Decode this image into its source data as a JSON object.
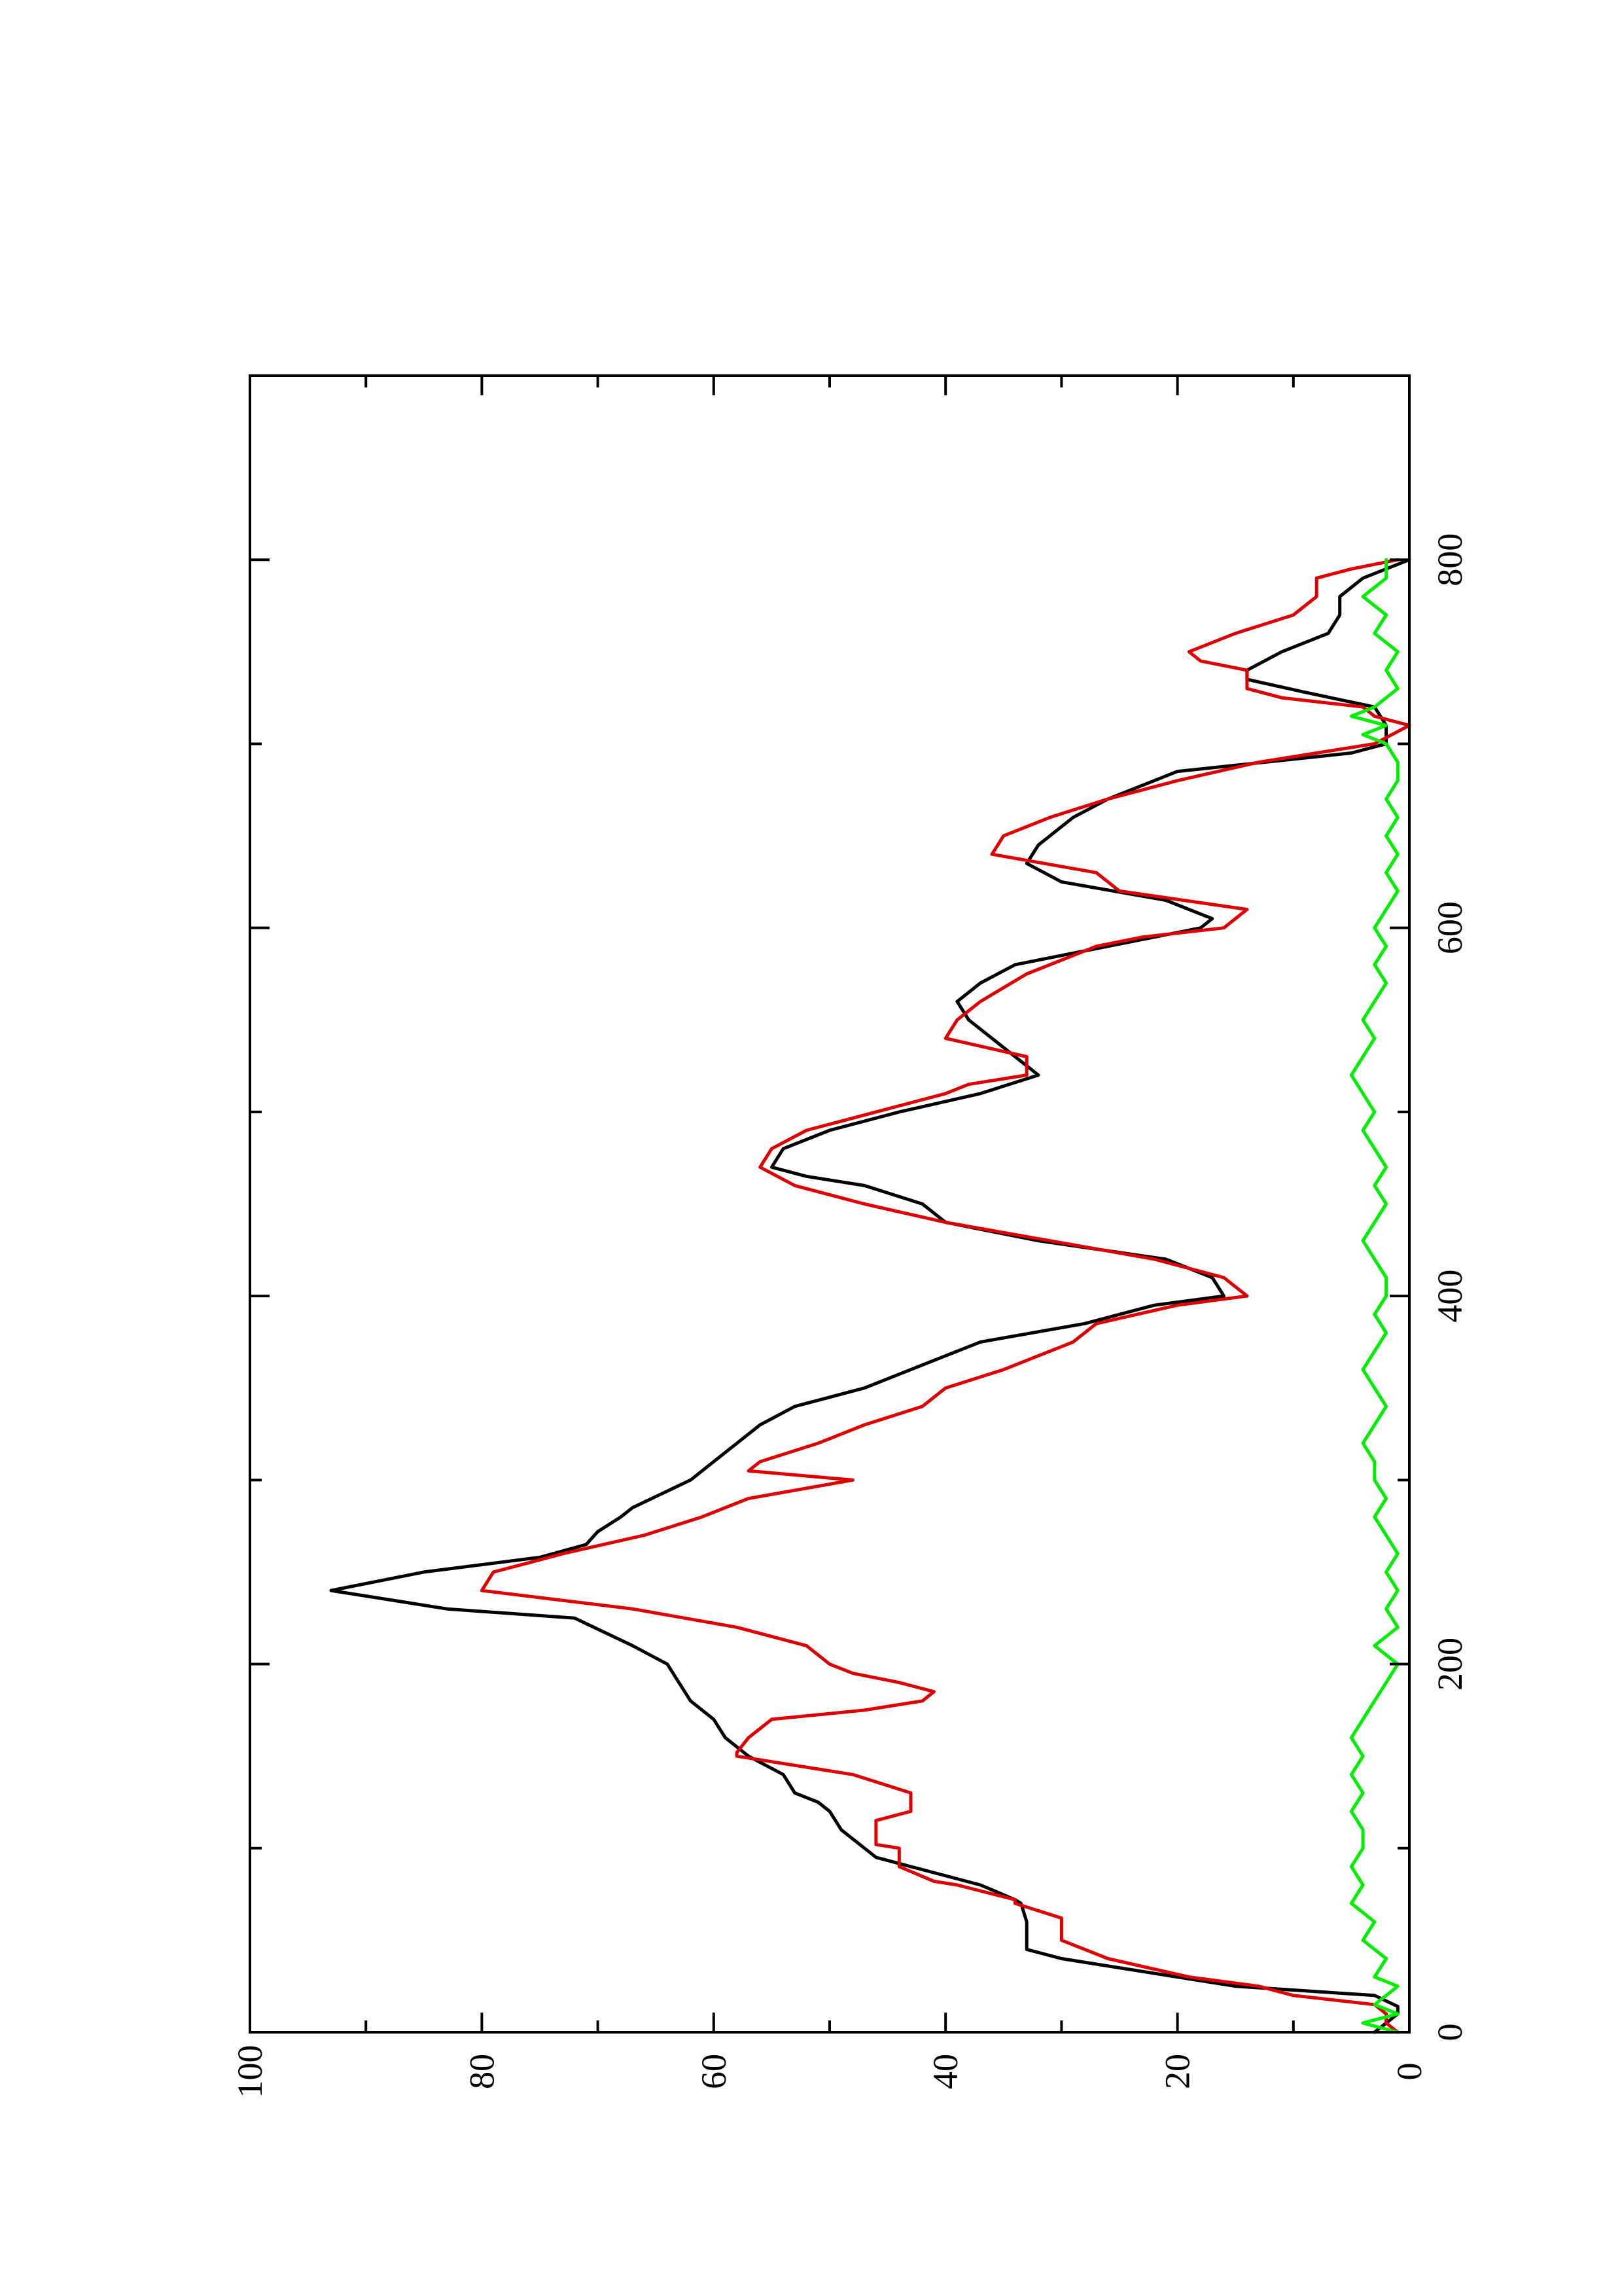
{
  "chart_data": {
    "type": "line",
    "orientation": "rotated-90-ccw",
    "xlim": [
      0,
      900
    ],
    "ylim": [
      0,
      100
    ],
    "x_ticks": [
      0,
      200,
      400,
      600,
      800
    ],
    "x_tick_labels": [
      "0",
      "200",
      "400",
      "600",
      "800"
    ],
    "y_ticks": [
      0,
      20,
      40,
      60,
      80,
      100
    ],
    "y_tick_labels": [
      "0",
      "20",
      "40",
      "60",
      "80",
      "100"
    ],
    "grid": false,
    "legend": "none",
    "series": [
      {
        "color": "#000000",
        "x": [
          0,
          10,
          14,
          20,
          25,
          40,
          45,
          55,
          60,
          70,
          72,
          80,
          90,
          95,
          105,
          110,
          120,
          125,
          130,
          140,
          150,
          160,
          170,
          180,
          190,
          200,
          210,
          225,
          230,
          240,
          250,
          258,
          265,
          272,
          280,
          285,
          300,
          310,
          330,
          340,
          345,
          350,
          360,
          375,
          385,
          395,
          400,
          410,
          420,
          430,
          440,
          450,
          460,
          465,
          470,
          480,
          490,
          500,
          510,
          520,
          530,
          540,
          550,
          560,
          570,
          580,
          590,
          600,
          605,
          615,
          625,
          635,
          645,
          660,
          670,
          685,
          695,
          700,
          710,
          720,
          728,
          735,
          740,
          750,
          760,
          770,
          780,
          790,
          800
        ],
        "y": [
          3,
          1,
          1,
          3,
          15,
          30,
          33,
          33,
          33,
          33.5,
          34,
          37,
          43,
          46,
          48,
          49,
          50,
          51,
          53,
          54,
          57,
          59,
          60,
          62,
          63,
          64,
          67,
          72,
          83,
          93,
          85,
          75,
          71,
          70,
          68,
          67,
          62,
          60,
          56,
          53,
          50,
          47,
          43,
          37,
          28,
          22,
          16,
          17,
          21,
          32,
          40,
          42,
          47,
          52,
          55,
          54,
          50,
          44,
          37,
          32,
          34,
          36,
          38,
          39,
          37,
          34,
          26,
          18,
          17,
          21,
          30,
          33,
          32,
          29,
          26,
          20,
          5,
          2,
          2,
          3,
          9,
          14,
          14,
          11,
          7,
          6,
          6,
          4,
          0
        ]
      },
      {
        "color": "#dd0000",
        "x": [
          0,
          5,
          10,
          15,
          20,
          25,
          30,
          40,
          50,
          60,
          62,
          70,
          72,
          80,
          82,
          90,
          100,
          102,
          110,
          115,
          120,
          125,
          130,
          140,
          150,
          152,
          160,
          165,
          170,
          175,
          180,
          185,
          190,
          195,
          200,
          210,
          220,
          230,
          240,
          250,
          255,
          260,
          270,
          280,
          285,
          290,
          300,
          305,
          310,
          320,
          330,
          340,
          350,
          360,
          375,
          385,
          395,
          400,
          410,
          420,
          430,
          440,
          450,
          460,
          470,
          480,
          490,
          500,
          510,
          515,
          520,
          530,
          540,
          550,
          560,
          575,
          590,
          595,
          600,
          610,
          620,
          630,
          640,
          650,
          660,
          670,
          680,
          690,
          700,
          710,
          715,
          720,
          725,
          730,
          740,
          745,
          750,
          760,
          770,
          775,
          780,
          790,
          795,
          800
        ],
        "y": [
          1,
          2,
          2,
          3,
          10,
          13,
          19,
          26,
          30,
          30,
          30,
          34,
          34,
          39,
          41,
          44,
          44,
          46,
          46,
          46,
          43,
          43,
          43,
          48,
          58,
          58,
          57,
          56,
          55,
          47,
          42,
          41,
          44,
          48,
          50,
          52,
          58,
          67,
          80,
          79,
          76,
          73,
          66,
          61,
          59,
          57,
          48,
          57,
          56,
          51,
          47,
          42,
          40,
          35,
          29,
          27,
          20,
          14,
          16,
          22,
          31,
          40,
          47,
          53,
          56,
          55,
          52,
          46,
          40,
          38,
          33,
          33,
          40,
          39,
          37,
          33,
          27,
          23,
          16,
          14,
          25,
          27,
          36,
          35,
          31,
          26,
          20,
          13,
          3,
          0,
          3,
          4,
          11,
          14,
          14,
          18,
          19,
          15,
          10,
          9,
          8,
          8,
          5,
          1
        ]
      },
      {
        "color": "#00ee00",
        "x": [
          0,
          5,
          10,
          15,
          20,
          25,
          30,
          40,
          50,
          60,
          70,
          80,
          90,
          100,
          110,
          120,
          130,
          140,
          150,
          160,
          170,
          180,
          190,
          200,
          210,
          220,
          230,
          240,
          250,
          260,
          270,
          280,
          290,
          300,
          310,
          320,
          330,
          340,
          350,
          360,
          370,
          380,
          390,
          400,
          410,
          420,
          430,
          440,
          450,
          460,
          470,
          480,
          490,
          500,
          510,
          520,
          530,
          540,
          550,
          560,
          570,
          580,
          590,
          600,
          610,
          620,
          630,
          640,
          650,
          660,
          670,
          680,
          690,
          700,
          705,
          710,
          715,
          720,
          730,
          740,
          750,
          760,
          770,
          780,
          790,
          800
        ],
        "y": [
          1,
          4,
          1,
          3,
          2,
          1,
          3,
          2,
          4,
          3,
          5,
          4,
          5,
          4,
          4,
          5,
          4,
          5,
          4,
          5,
          4,
          3,
          2,
          1,
          3,
          1,
          2,
          1,
          2,
          1,
          2,
          3,
          2,
          3,
          3,
          4,
          3,
          2,
          3,
          4,
          3,
          2,
          3,
          2,
          2,
          3,
          4,
          3,
          2,
          3,
          2,
          3,
          4,
          3,
          4,
          5,
          4,
          3,
          4,
          3,
          2,
          3,
          2,
          3,
          2,
          1,
          2,
          1,
          2,
          1,
          2,
          1,
          1,
          2,
          4,
          2,
          5,
          3,
          1,
          2,
          1,
          3,
          2,
          4,
          2,
          2
        ]
      }
    ]
  }
}
